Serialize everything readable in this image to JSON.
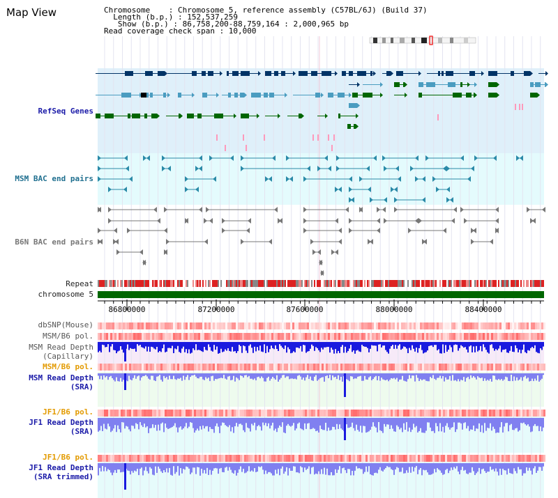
{
  "title": "Map View",
  "info_lines": [
    "Chromosome    : Chromosome 5, reference assembly (C57BL/6J) (Build 37)",
    "  Length (b.p.) : 152,537,259",
    "   Show (b.p.) : 86,758,200-88,759,164 : 2,000,965 bp",
    "Read coverage check span : 10,000"
  ],
  "tracks": {
    "refseq": "RefSeq Genes",
    "msm_bac": "MSM BAC end pairs",
    "b6n_bac": "B6N BAC end pairs",
    "repeat": "Repeat",
    "chromosome": "chromosome 5",
    "dbsnp": "dbSNP(Mouse)",
    "msm_b6_pol_1": "MSM/B6 pol.",
    "msm_depth_cap_1": "MSM Read Depth",
    "msm_depth_cap_2": "(Capillary)",
    "msm_b6_pol_2": "MSM/B6 pol.",
    "msm_depth_sra_1": "MSM Read Depth",
    "msm_depth_sra_2": "(SRA)",
    "jf1_b6_pol_1": "JF1/B6 pol.",
    "jf1_depth_sra_1": "JF1 Read Depth",
    "jf1_depth_sra_2": "(SRA)",
    "jf1_b6_pol_2": "JF1/B6 pol.",
    "jf1_depth_trim_1": "JF1 Read Depth",
    "jf1_depth_trim_2": "(SRA trimmed)"
  },
  "axis_ticks": [
    "86800000",
    "87200000",
    "87600000",
    "88000000",
    "88400000"
  ],
  "colors": {
    "refseq_bg": "#dff0fa",
    "msm_bac_bg": "#e4fbfd",
    "gene_navy": "#003366",
    "gene_blue": "#4a9cc0",
    "gene_green": "#006600",
    "pink": "#ff99bb",
    "teal": "#2a8aa8",
    "gray": "#777777",
    "repeat_red": "#dd2222",
    "chrom_green": "#006600",
    "depth_dark": "#1a1adf",
    "depth_light": "#8080f0"
  }
}
